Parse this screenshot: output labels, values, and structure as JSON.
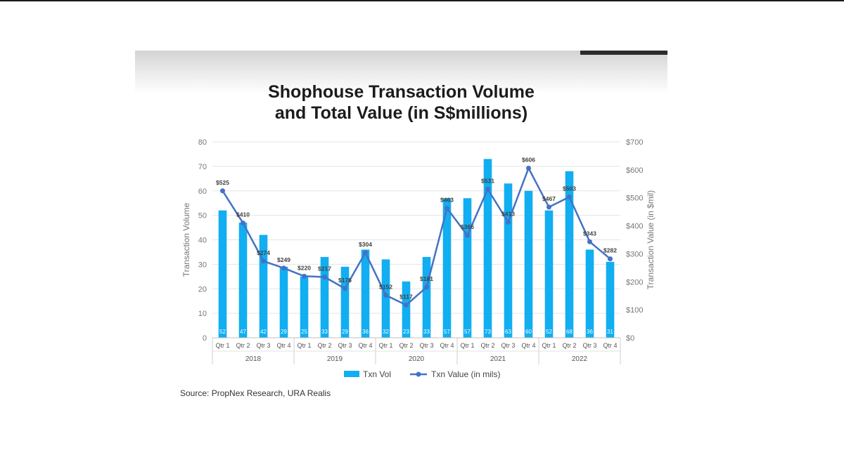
{
  "chart_data": {
    "type": "bar+line",
    "title_lines": [
      "Shophouse Transaction Volume",
      "and Total Value (in S$millions)"
    ],
    "ylabel_left": "Transaction Volume",
    "ylabel_right": "Transaction Value (in $mil)",
    "ylim_left": [
      0,
      80
    ],
    "ylim_right": [
      0,
      700
    ],
    "yticks_left": [
      "0",
      "10",
      "20",
      "30",
      "40",
      "50",
      "60",
      "70",
      "80"
    ],
    "yticks_right": [
      "$0",
      "$100",
      "$200",
      "$300",
      "$400",
      "$500",
      "$600",
      "$700"
    ],
    "categories": [
      "Qtr 1",
      "Qtr 2",
      "Qtr 3",
      "Qtr 4",
      "Qtr 1",
      "Qtr 2",
      "Qtr 3",
      "Qtr 4",
      "Qtr 1",
      "Qtr 2",
      "Qtr 3",
      "Qtr 4",
      "Qtr 1",
      "Qtr 2",
      "Qtr 3",
      "Qtr 4",
      "Qtr 1",
      "Qtr 2",
      "Qtr 3",
      "Qtr 4"
    ],
    "groups": [
      "2018",
      "2019",
      "2020",
      "2021",
      "2022"
    ],
    "grid": true,
    "legend_position": "bottom",
    "colors": {
      "bar": "#11aef1",
      "line": "#4472c4"
    },
    "series": [
      {
        "name": "Txn Vol",
        "type": "bar",
        "axis": "left",
        "values": [
          52,
          47,
          42,
          29,
          25,
          33,
          29,
          36,
          32,
          23,
          33,
          57,
          57,
          73,
          63,
          60,
          52,
          68,
          36,
          31
        ],
        "labels": [
          "52",
          "47",
          "42",
          "29",
          "25",
          "33",
          "29",
          "36",
          "32",
          "23",
          "33",
          "57",
          "57",
          "73",
          "63",
          "60",
          "52",
          "68",
          "36",
          "31"
        ]
      },
      {
        "name": "Txn Value (in mils)",
        "type": "line",
        "axis": "right",
        "values": [
          525,
          410,
          274,
          249,
          220,
          217,
          176,
          304,
          152,
          117,
          181,
          463,
          366,
          531,
          413,
          606,
          467,
          503,
          343,
          282
        ],
        "labels": [
          "$525",
          "$410",
          "$274",
          "$249",
          "$220",
          "$217",
          "$176",
          "$304",
          "$152",
          "$117",
          "$181",
          "$463",
          "$366",
          "$531",
          "$413",
          "$606",
          "$467",
          "$503",
          "$343",
          "$282"
        ]
      }
    ]
  },
  "source_text": "Source: PropNex Research, URA Realis"
}
